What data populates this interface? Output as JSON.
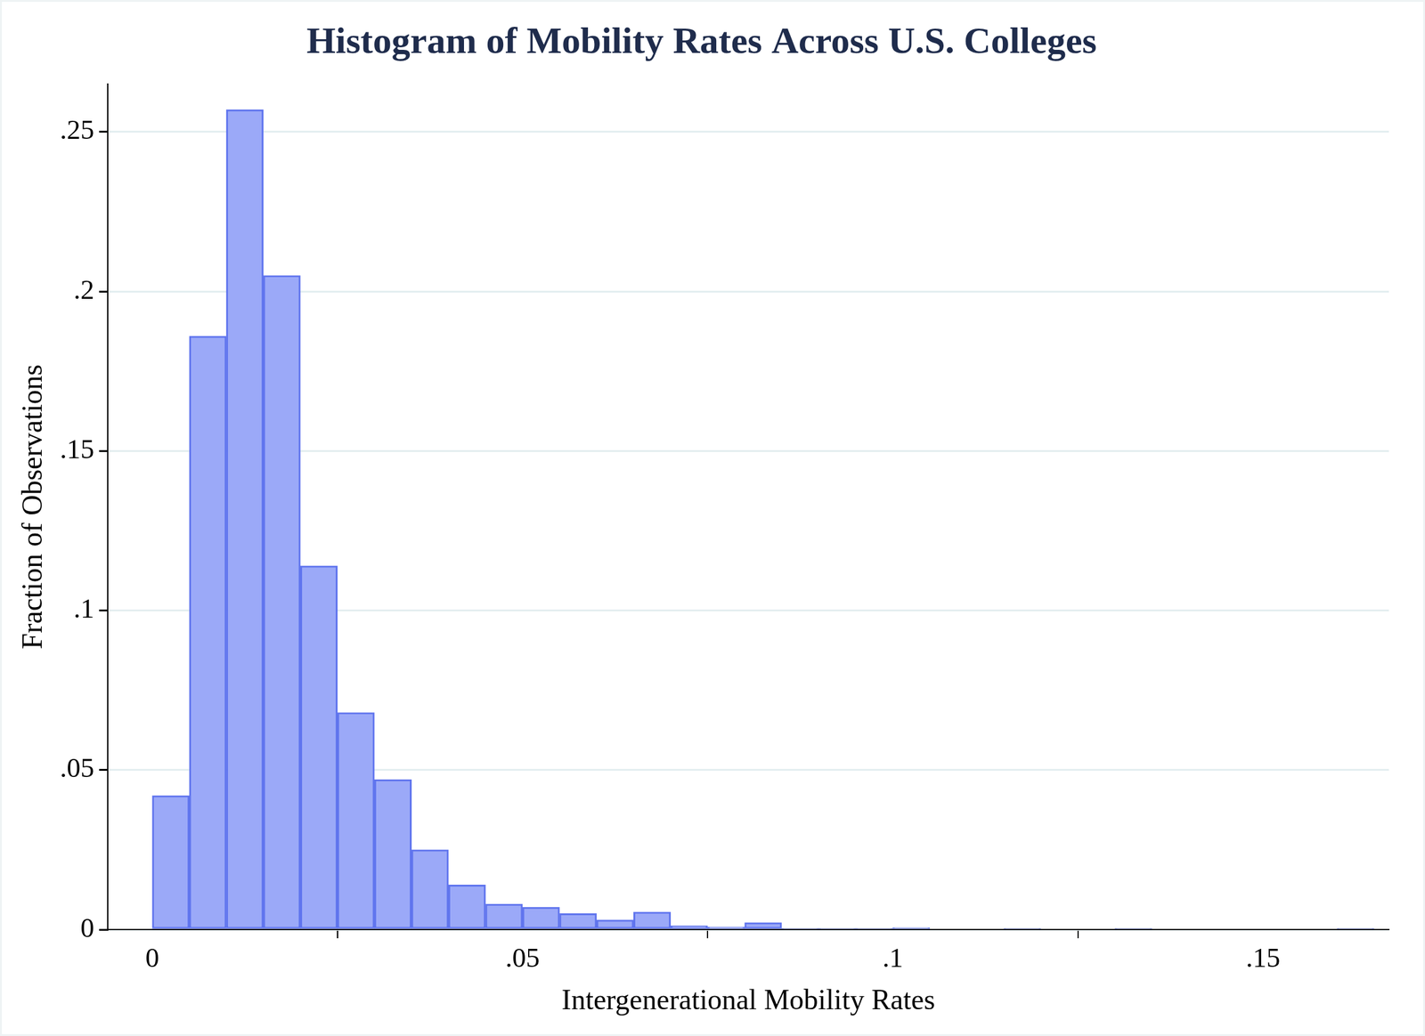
{
  "chart_data": {
    "type": "histogram",
    "title": "Histogram of Mobility Rates Across U.S. Colleges",
    "x_label": "Intergenerational Mobility Rates",
    "y_label": "Fraction of Observations",
    "bins": [
      0,
      0.005,
      0.01,
      0.015,
      0.02,
      0.025,
      0.03,
      0.035,
      0.04,
      0.045,
      0.05,
      0.055,
      0.06,
      0.065,
      0.07,
      0.075,
      0.08,
      0.085,
      0.09,
      0.095,
      0.1,
      0.105,
      0.11,
      0.115,
      0.12,
      0.125,
      0.13,
      0.135,
      0.14,
      0.145,
      0.15,
      0.155,
      0.16,
      0.165
    ],
    "values": [
      0.042,
      0.186,
      0.257,
      0.205,
      0.114,
      0.068,
      0.047,
      0.025,
      0.014,
      0.008,
      0.007,
      0.005,
      0.003,
      0.0055,
      0.0012,
      0.0008,
      0.0022,
      0.0004,
      0.0004,
      0.0004,
      0.0006,
      0,
      0,
      0.0004,
      0,
      0,
      0.0004,
      0,
      0,
      0,
      0,
      0,
      0.0004
    ],
    "color": "#9ba9f8",
    "xlim": [
      -0.006,
      0.167
    ],
    "xticks": [
      0,
      {
        "value": 0.05,
        "label": ".05"
      },
      {
        "value": 0.1,
        "label": ".1"
      },
      {
        "value": 0.15,
        "label": ".15"
      }
    ],
    "ylim": [
      0,
      0.265
    ],
    "yticks": [
      0,
      {
        "value": 0.05,
        "label": ".05"
      },
      {
        "value": 0.1,
        "label": ".1"
      },
      {
        "value": 0.15,
        "label": ".15"
      },
      {
        "value": 0.2,
        "label": ".2"
      },
      {
        "value": 0.25,
        "label": ".25"
      }
    ],
    "grid": true
  }
}
